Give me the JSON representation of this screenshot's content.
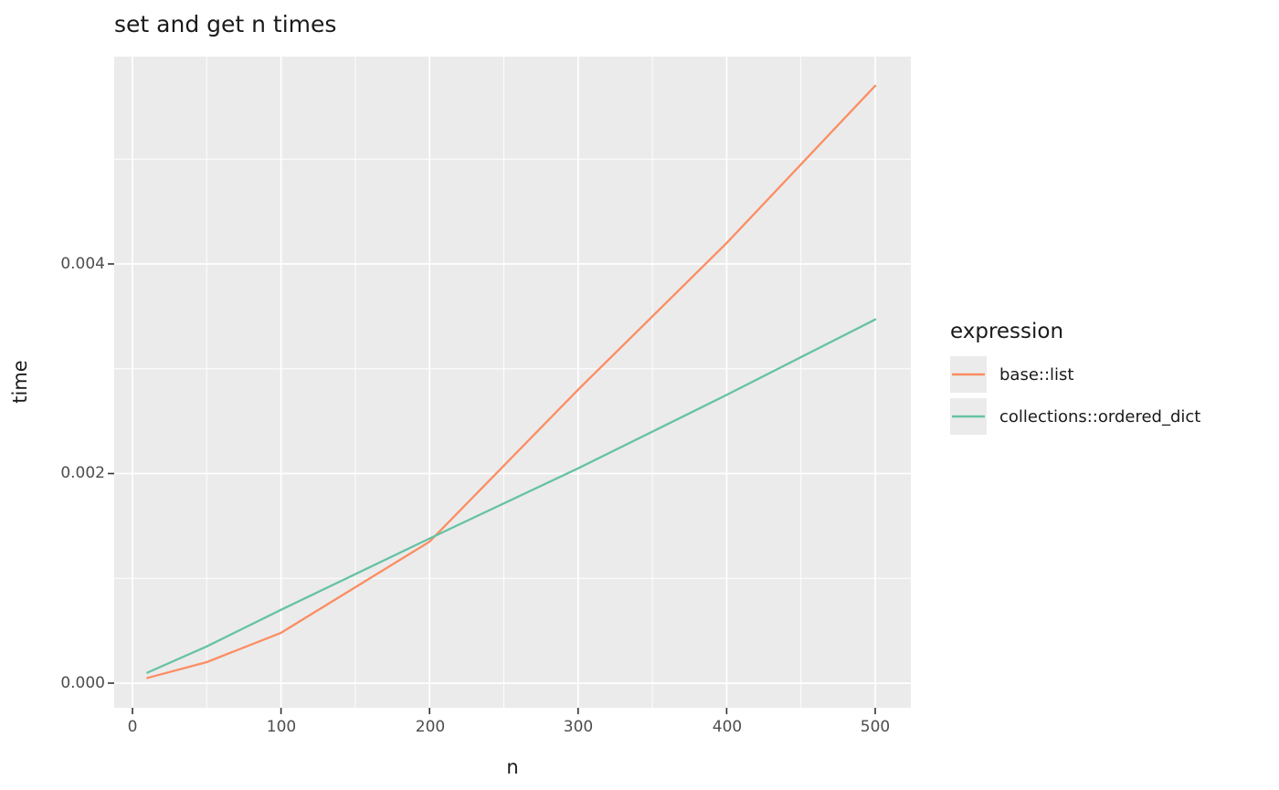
{
  "chart_data": {
    "type": "line",
    "title": "set and get n times",
    "xlabel": "n",
    "ylabel": "time",
    "panel_bg": "#ebebeb",
    "grid_color": "#ffffff",
    "tick_color": "#333333",
    "x_ticks": {
      "values": [
        0,
        100,
        200,
        300,
        400,
        500
      ],
      "labels": [
        "0",
        "100",
        "200",
        "300",
        "400",
        "500"
      ]
    },
    "x_minor": [
      50,
      150,
      250,
      350,
      450
    ],
    "y_ticks": {
      "values": [
        0,
        0.002,
        0.004
      ],
      "labels": [
        "0.000",
        "0.002",
        "0.004"
      ]
    },
    "y_minor": [
      0.001,
      0.003,
      0.005
    ],
    "xlim": [
      -12,
      524
    ],
    "ylim": [
      0,
      0.006
    ],
    "legend": {
      "title": "expression",
      "position": "right"
    },
    "series": [
      {
        "name": "base::list",
        "color": "#FC8D62",
        "x": [
          10,
          50,
          100,
          200,
          300,
          400,
          500
        ],
        "y": [
          5e-05,
          0.0002,
          0.00048,
          0.00135,
          0.0028,
          0.0042,
          0.0057
        ]
      },
      {
        "name": "collections::ordered_dict",
        "color": "#66C2A5",
        "x": [
          10,
          50,
          100,
          200,
          300,
          400,
          500
        ],
        "y": [
          0.0001,
          0.00035,
          0.0007,
          0.00138,
          0.00205,
          0.00275,
          0.00347
        ]
      }
    ]
  }
}
